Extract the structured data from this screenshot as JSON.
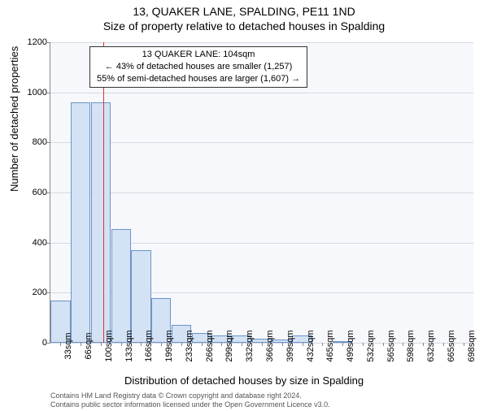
{
  "header": {
    "title": "13, QUAKER LANE, SPALDING, PE11 1ND",
    "subtitle": "Size of property relative to detached houses in Spalding"
  },
  "chart": {
    "type": "histogram",
    "background_color": "#f6f8fc",
    "grid_color": "#d6dae3",
    "bar_fill": "#d3e2f4",
    "bar_stroke": "#6d94c8",
    "marker_color": "#d93636",
    "marker_x_sqm": 104,
    "ylabel": "Number of detached properties",
    "xlabel": "Distribution of detached houses by size in Spalding",
    "ylim": [
      0,
      1200
    ],
    "ytick_step": 200,
    "yticks": [
      0,
      200,
      400,
      600,
      800,
      1000,
      1200
    ],
    "x_categories": [
      "33sqm",
      "66sqm",
      "100sqm",
      "133sqm",
      "166sqm",
      "199sqm",
      "233sqm",
      "266sqm",
      "299sqm",
      "332sqm",
      "366sqm",
      "399sqm",
      "432sqm",
      "465sqm",
      "499sqm",
      "532sqm",
      "565sqm",
      "598sqm",
      "632sqm",
      "665sqm",
      "698sqm"
    ],
    "values": [
      170,
      960,
      960,
      455,
      370,
      180,
      70,
      40,
      30,
      30,
      15,
      12,
      30,
      0,
      4,
      0,
      0,
      0,
      0,
      0,
      0
    ],
    "label_fontsize": 13,
    "tick_fontsize": 11
  },
  "annotation": {
    "lines": [
      "13 QUAKER LANE: 104sqm",
      "← 43% of detached houses are smaller (1,257)",
      "55% of semi-detached houses are larger (1,607) →"
    ]
  },
  "footer": {
    "line1": "Contains HM Land Registry data © Crown copyright and database right 2024.",
    "line2": "Contains public sector information licensed under the Open Government Licence v3.0."
  }
}
